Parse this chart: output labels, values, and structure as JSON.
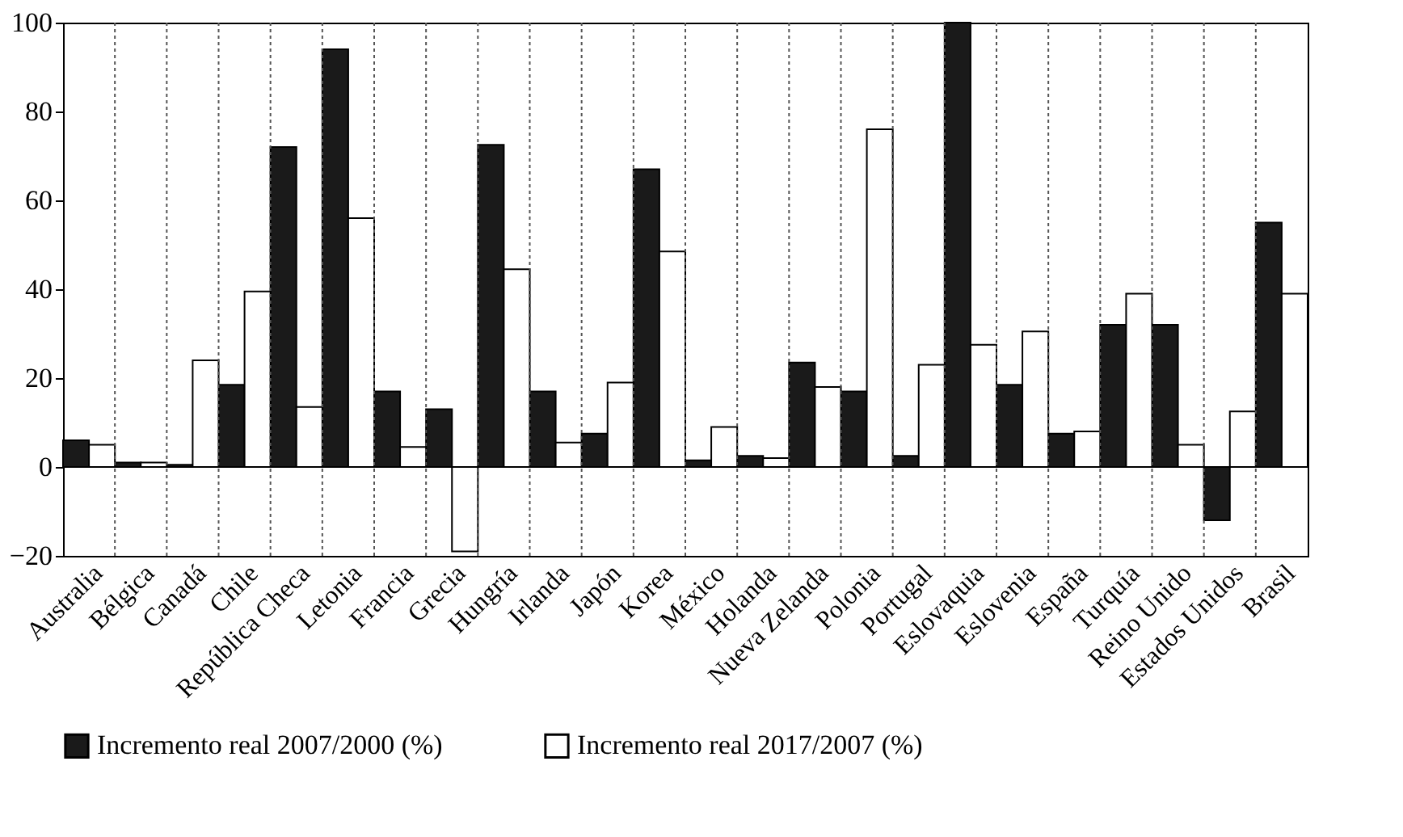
{
  "chart_data": {
    "type": "bar",
    "categories": [
      "Australia",
      "Bélgica",
      "Canadá",
      "Chile",
      "República Checa",
      "Letonia",
      "Francia",
      "Grecia",
      "Hungría",
      "Irlanda",
      "Japón",
      "Korea",
      "México",
      "Holanda",
      "Nueva Zelanda",
      "Polonia",
      "Portugal",
      "Eslovaquia",
      "Eslovenia",
      "España",
      "Turquía",
      "Reino Unido",
      "Estados Unidos",
      "Brasil"
    ],
    "series": [
      {
        "name": "Incremento real 2007/2000 (%)",
        "color": "#1a1a1a",
        "values": [
          6,
          1,
          0.5,
          18.5,
          72,
          94,
          17,
          13,
          72.5,
          17,
          7.5,
          67,
          1.5,
          2.5,
          23.5,
          17,
          2.5,
          100,
          18.5,
          7.5,
          32,
          32,
          -12,
          55
        ]
      },
      {
        "name": "Incremento real 2017/2007 (%)",
        "color": "#ffffff",
        "values": [
          5,
          1,
          24,
          39.5,
          13.5,
          56,
          4.5,
          -19,
          44.5,
          5.5,
          19,
          48.5,
          9,
          2,
          18,
          76,
          23,
          27.5,
          30.5,
          8,
          39,
          5,
          12.5,
          39
        ]
      }
    ],
    "ylim": [
      -20,
      100
    ],
    "yticks": [
      -20,
      0,
      20,
      40,
      60,
      80,
      100
    ],
    "grid": "x",
    "legend": "bottom"
  }
}
